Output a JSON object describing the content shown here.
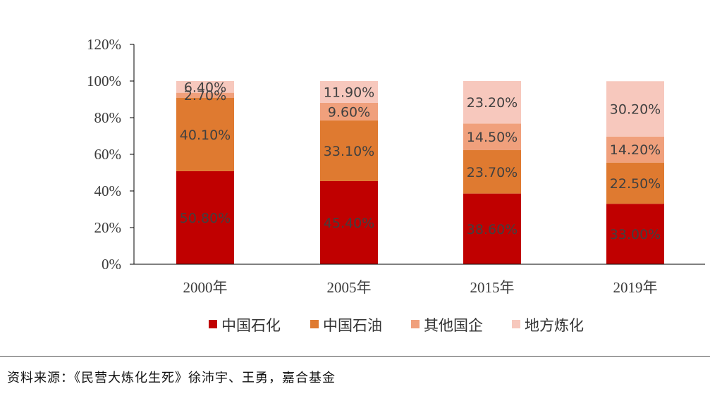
{
  "chart_data": {
    "type": "bar",
    "stacked": true,
    "categories": [
      "2000年",
      "2005年",
      "2015年",
      "2019年"
    ],
    "series": [
      {
        "name": "中国石化",
        "color": "#c00000",
        "values": [
          50.8,
          45.4,
          38.6,
          33.0
        ],
        "labels": [
          "50.80%",
          "45.40%",
          "38.60%",
          "33.00%"
        ]
      },
      {
        "name": "中国石油",
        "color": "#df7a30",
        "values": [
          40.1,
          33.1,
          23.7,
          22.5
        ],
        "labels": [
          "40.10%",
          "33.10%",
          "23.70%",
          "22.50%"
        ]
      },
      {
        "name": "其他国企",
        "color": "#f0a07c",
        "values": [
          2.7,
          9.6,
          14.5,
          14.2
        ],
        "labels": [
          "2.70%",
          "9.60%",
          "14.50%",
          "14.20%"
        ]
      },
      {
        "name": "地方炼化",
        "color": "#f7c8bd",
        "values": [
          6.4,
          11.9,
          23.2,
          30.2
        ],
        "labels": [
          "6.40%",
          "11.90%",
          "23.20%",
          "30.20%"
        ]
      }
    ],
    "yticks": [
      "0%",
      "20%",
      "40%",
      "60%",
      "80%",
      "100%",
      "120%"
    ],
    "ylim": [
      0,
      120
    ],
    "legend_position": "bottom",
    "grid": false
  },
  "source_note": "资料来源：《民营大炼化生死》徐沛宇、王勇，嘉合基金"
}
